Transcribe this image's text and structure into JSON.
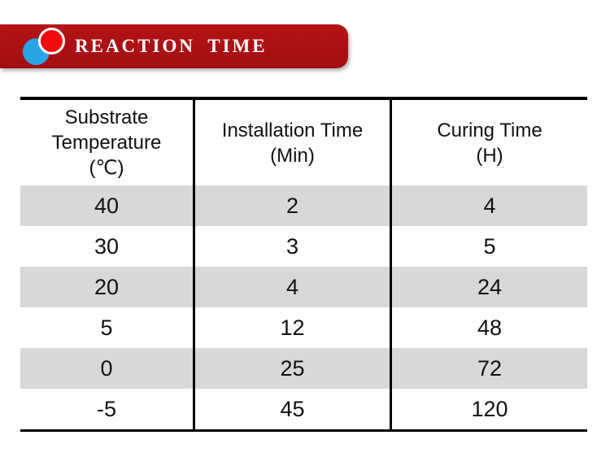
{
  "banner": {
    "title": "REACTION TIME",
    "icon": "overlapping-circles",
    "colors": {
      "background": "#a81013",
      "circle_red": "#f20d0d",
      "circle_blue": "#2aa4e7",
      "text": "#ffffff"
    }
  },
  "table": {
    "headers": [
      "Substrate\nTemperature\n(℃)",
      "Installation Time\n(Min)",
      "Curing Time\n(H)"
    ],
    "rows": [
      [
        "40",
        "2",
        "4"
      ],
      [
        "30",
        "3",
        "5"
      ],
      [
        "20",
        "4",
        "24"
      ],
      [
        "5",
        "12",
        "48"
      ],
      [
        "0",
        "25",
        "72"
      ],
      [
        "-5",
        "45",
        "120"
      ]
    ],
    "colors": {
      "stripe_row": "#d8d8d8",
      "border": "#000000"
    }
  },
  "chart_data": {
    "type": "table",
    "title": "REACTION TIME",
    "columns": [
      "Substrate Temperature (℃)",
      "Installation Time (Min)",
      "Curing Time (H)"
    ],
    "substrate_temperature_c": [
      40,
      30,
      20,
      5,
      0,
      -5
    ],
    "installation_time_min": [
      2,
      3,
      4,
      12,
      25,
      45
    ],
    "curing_time_h": [
      4,
      5,
      24,
      48,
      72,
      120
    ]
  }
}
